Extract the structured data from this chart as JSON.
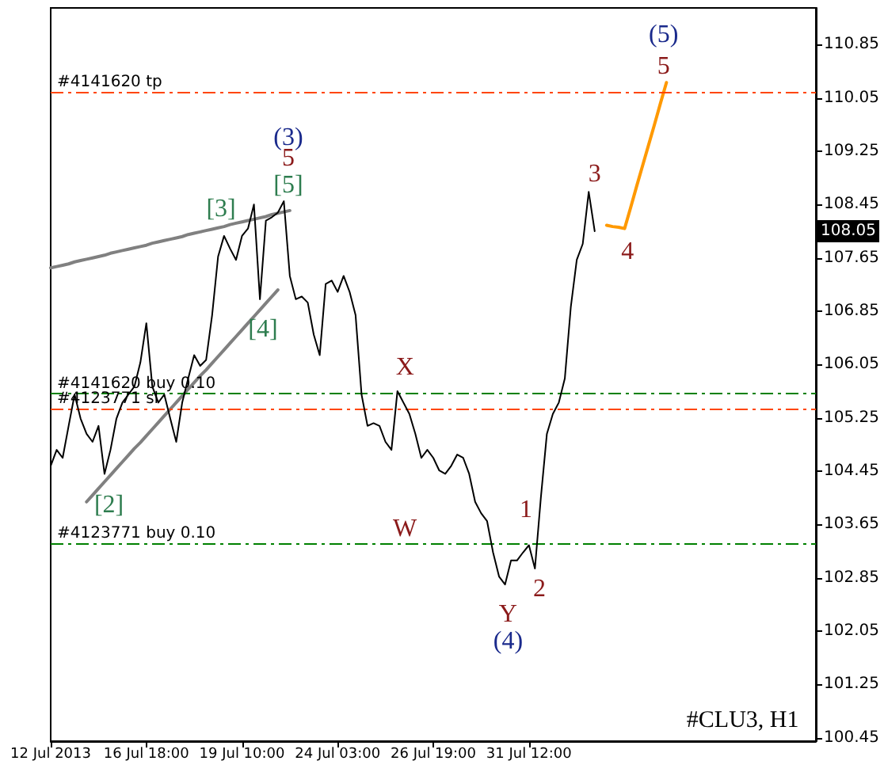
{
  "chart_data": {
    "type": "line",
    "marker": "none",
    "line_style": "solid",
    "grid": false,
    "categories": [
      "12 Jul 2013",
      null,
      null,
      null,
      null,
      null,
      null,
      null,
      null,
      null,
      null,
      null,
      null,
      null,
      null,
      null,
      "16 Jul 18:00",
      null,
      null,
      null,
      null,
      null,
      null,
      null,
      null,
      null,
      null,
      null,
      null,
      null,
      null,
      null,
      "19 Jul 10:00",
      null,
      null,
      null,
      null,
      null,
      null,
      null,
      null,
      null,
      null,
      null,
      null,
      null,
      null,
      null,
      "24 Jul 03:00",
      null,
      null,
      null,
      null,
      null,
      null,
      null,
      null,
      null,
      null,
      null,
      null,
      null,
      null,
      null,
      "26 Jul 19:00",
      null,
      null,
      null,
      null,
      null,
      null,
      null,
      null,
      null,
      null,
      null,
      null,
      null,
      null,
      null,
      "31 Jul 12:00",
      null,
      null,
      null,
      null,
      null,
      null,
      null,
      null,
      null,
      null,
      null,
      null,
      null,
      null,
      null,
      null,
      null,
      null,
      null,
      null,
      null,
      null,
      null,
      null,
      null,
      null,
      null,
      null,
      null,
      null,
      null,
      null,
      null,
      null,
      null,
      null,
      null,
      null,
      null,
      null,
      null,
      null,
      null,
      null,
      null,
      null,
      null,
      null
    ],
    "ylim": [
      100.4,
      111.4
    ],
    "yticks": [
      100.45,
      101.25,
      102.05,
      102.85,
      103.65,
      104.45,
      105.25,
      106.05,
      106.85,
      107.65,
      108.45,
      109.25,
      110.05,
      110.85
    ],
    "series": [
      {
        "color": "#000000",
        "values": [
          104.53,
          104.77,
          104.65,
          105.13,
          105.6,
          105.24,
          105.01,
          104.89,
          105.13,
          104.41,
          104.77,
          105.24,
          105.48,
          105.6,
          105.72,
          106.08,
          106.67,
          105.72,
          105.48,
          105.6,
          105.24,
          104.89,
          105.48,
          105.84,
          106.19,
          106.03,
          106.12,
          106.79,
          107.67,
          107.98,
          107.79,
          107.62,
          107.98,
          108.09,
          108.45,
          107.03,
          108.21,
          108.26,
          108.33,
          108.5,
          107.38,
          107.03,
          107.07,
          106.98,
          106.5,
          106.19,
          107.26,
          107.31,
          107.14,
          107.38,
          107.14,
          106.79,
          105.6,
          105.13,
          105.17,
          105.13,
          104.89,
          104.77,
          105.65,
          105.48,
          105.31,
          105.01,
          104.65,
          104.77,
          104.65,
          104.46,
          104.41,
          104.53,
          104.7,
          104.65,
          104.41,
          103.99,
          103.82,
          103.7,
          103.23,
          102.87,
          102.75,
          103.11,
          103.11,
          103.23,
          103.34,
          102.99,
          104.06,
          105.01,
          105.31,
          105.48,
          105.84,
          106.91,
          107.62,
          107.86,
          108.64,
          108.05,
          null,
          null,
          null,
          null,
          null,
          null,
          null,
          null,
          null,
          null,
          null,
          null,
          null,
          null,
          null,
          null,
          null,
          null,
          null,
          null,
          null,
          null,
          null,
          null,
          null,
          null,
          null,
          null,
          null,
          null,
          null,
          null,
          null,
          null,
          null,
          null,
          null
        ]
      },
      {
        "color": "#ff9900",
        "values": [
          null,
          null,
          null,
          null,
          null,
          null,
          null,
          null,
          null,
          null,
          null,
          null,
          null,
          null,
          null,
          null,
          null,
          null,
          null,
          null,
          null,
          null,
          null,
          null,
          null,
          null,
          null,
          null,
          null,
          null,
          null,
          null,
          null,
          null,
          null,
          null,
          null,
          null,
          null,
          null,
          null,
          null,
          null,
          null,
          null,
          null,
          null,
          null,
          null,
          null,
          null,
          null,
          null,
          null,
          null,
          null,
          null,
          null,
          null,
          null,
          null,
          null,
          null,
          null,
          null,
          null,
          null,
          null,
          null,
          null,
          null,
          null,
          null,
          null,
          null,
          null,
          null,
          null,
          null,
          null,
          null,
          null,
          null,
          null,
          null,
          null,
          null,
          null,
          null,
          null,
          null,
          null,
          null,
          108.14,
          108.12,
          108.11,
          108.09,
          108.4,
          108.72,
          109.03,
          109.34,
          109.65,
          109.97,
          110.28,
          null,
          null,
          null,
          null,
          null,
          null,
          null,
          null,
          null,
          null,
          null,
          null,
          null,
          null,
          null,
          null,
          null,
          null,
          null,
          null,
          null,
          null,
          null,
          null,
          null
        ]
      },
      {
        "color": "#808080",
        "values": [
          107.5,
          107.52,
          107.54,
          107.56,
          107.59,
          107.61,
          107.63,
          107.65,
          107.67,
          107.69,
          107.72,
          107.74,
          107.76,
          107.78,
          107.8,
          107.82,
          107.84,
          107.87,
          107.89,
          107.91,
          107.93,
          107.95,
          107.97,
          108.0,
          108.02,
          108.04,
          108.06,
          108.08,
          108.1,
          108.12,
          108.15,
          108.17,
          108.19,
          108.21,
          108.23,
          108.25,
          108.27,
          108.3,
          108.32,
          108.34,
          108.36,
          null,
          null,
          null,
          null,
          null,
          null,
          null,
          null,
          null,
          null,
          null,
          null,
          null,
          null,
          null,
          null,
          null,
          null,
          null,
          null,
          null,
          null,
          null,
          null,
          null,
          null,
          null,
          null,
          null,
          null,
          null,
          null,
          null,
          null,
          null,
          null,
          null,
          null,
          null,
          null,
          null,
          null,
          null,
          null,
          null,
          null,
          null,
          null,
          null,
          null,
          null,
          null,
          null,
          null,
          null,
          null,
          null,
          null,
          null,
          null,
          null,
          null,
          null,
          null,
          null,
          null,
          null,
          null,
          null,
          null,
          null,
          null,
          null,
          null,
          null,
          null,
          null,
          null,
          null,
          null,
          null,
          null,
          null,
          null,
          null,
          null,
          null,
          null
        ]
      },
      {
        "color": "#808080",
        "values": [
          null,
          null,
          null,
          null,
          null,
          null,
          103.99,
          104.09,
          104.19,
          104.29,
          104.39,
          104.49,
          104.59,
          104.69,
          104.79,
          104.88,
          104.98,
          105.08,
          105.18,
          105.28,
          105.38,
          105.48,
          105.58,
          105.68,
          105.78,
          105.88,
          105.97,
          106.07,
          106.17,
          106.27,
          106.37,
          106.47,
          106.57,
          106.67,
          106.77,
          106.87,
          106.97,
          107.07,
          107.17,
          null,
          null,
          null,
          null,
          null,
          null,
          null,
          null,
          null,
          null,
          null,
          null,
          null,
          null,
          null,
          null,
          null,
          null,
          null,
          null,
          null,
          null,
          null,
          null,
          null,
          null,
          null,
          null,
          null,
          null,
          null,
          null,
          null,
          null,
          null,
          null,
          null,
          null,
          null,
          null,
          null,
          null,
          null,
          null,
          null,
          null,
          null,
          null,
          null,
          null,
          null,
          null,
          null,
          null,
          null,
          null,
          null,
          null,
          null,
          null,
          null,
          null,
          null,
          null,
          null,
          null,
          null,
          null,
          null,
          null,
          null,
          null,
          null,
          null,
          null,
          null,
          null,
          null,
          null,
          null,
          null,
          null,
          null,
          null,
          null,
          null,
          null,
          null,
          null,
          null
        ]
      }
    ],
    "ref_lines": [
      {
        "axis": "y",
        "value": 110.14,
        "label": "#4141620 tp",
        "color": "#ff4500",
        "line_style": "dashed"
      },
      {
        "axis": "y",
        "value": 105.62,
        "label": "#4141620 buy 0.10",
        "color": "#008000",
        "line_style": "dashed"
      },
      {
        "axis": "y",
        "value": 105.39,
        "label": "#4123771 sl",
        "color": "#ff4500",
        "line_style": "dashed"
      },
      {
        "axis": "y",
        "value": 103.37,
        "label": "#4123771 buy 0.10",
        "color": "#008000",
        "line_style": "dashed"
      }
    ],
    "annotations": [
      "(5)",
      "(3)",
      "(4)",
      "5",
      "5",
      "X",
      "W",
      "Y",
      "1",
      "2",
      "3",
      "4",
      "[5]",
      "[3]",
      "[4]",
      "[2]",
      {
        "text": "108.05",
        "y": 108.05
      },
      "#CLU3, H1"
    ]
  }
}
